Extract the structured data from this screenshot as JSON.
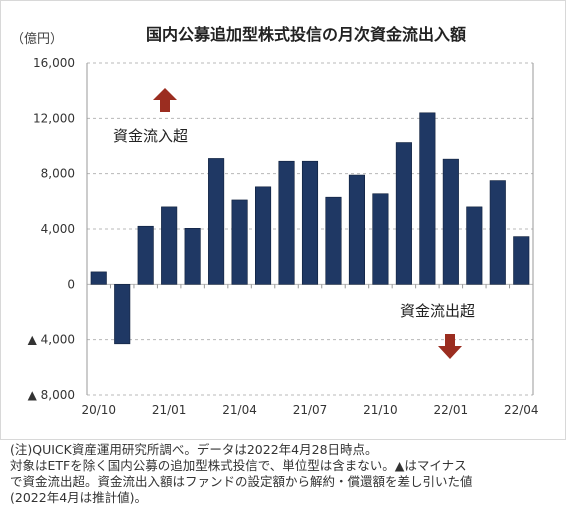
{
  "chart_data": {
    "type": "bar",
    "title": "国内公募追加型株式投信の月次資金流出入額",
    "unit_label": "（億円）",
    "categories": [
      "20/10",
      "20/11",
      "20/12",
      "21/01",
      "21/02",
      "21/03",
      "21/04",
      "21/05",
      "21/06",
      "21/07",
      "21/08",
      "21/09",
      "21/10",
      "21/11",
      "21/12",
      "22/01",
      "22/02",
      "22/03",
      "22/04"
    ],
    "values": [
      900,
      -4300,
      4200,
      5600,
      4050,
      9100,
      6100,
      7050,
      8900,
      8900,
      6300,
      7900,
      6550,
      10250,
      12400,
      9050,
      5600,
      7500,
      3450
    ],
    "x_tick_labels": [
      "20/10",
      "21/01",
      "21/04",
      "21/07",
      "21/10",
      "22/01",
      "22/04"
    ],
    "y_ticks": [
      16000,
      12000,
      8000,
      4000,
      0,
      -4000,
      -8000
    ],
    "y_tick_labels": [
      "16,000",
      "12,000",
      "8,000",
      "4,000",
      "0",
      "▲ 4,000",
      "▲ 8,000"
    ],
    "ylim": [
      -8000,
      16000
    ],
    "grid": true,
    "bar_color": "#1f3864",
    "arrow_color": "#9b2d20",
    "annotations": {
      "inflow_label": "資金流入超",
      "outflow_label": "資金流出超"
    }
  },
  "notes": [
    "(注)QUICK資産運用研究所調べ。データは2022年4月28日時点。",
    "対象はETFを除く国内公募の追加型株式投信で、単位型は含まない。▲はマイナス",
    "で資金流出超。資金流出入額はファンドの設定額から解約・償還額を差し引いた値",
    "(2022年4月は推計値)。"
  ]
}
